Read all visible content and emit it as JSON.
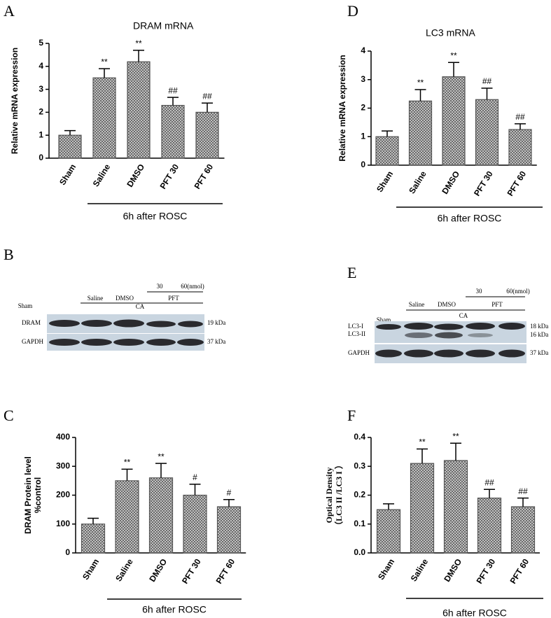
{
  "chart_data": [
    {
      "type": "bar",
      "panel_label": "A",
      "title": "DRAM mRNA",
      "ylabel": [
        "Relative mRNA expression"
      ],
      "color": "#555555",
      "categories": [
        "Sham",
        "Saline",
        "DMSO",
        "PFT 30",
        "PFT 60"
      ],
      "values": [
        1.0,
        3.5,
        4.2,
        2.3,
        2.0
      ],
      "errors": [
        0.2,
        0.4,
        0.5,
        0.35,
        0.4
      ],
      "annotations": [
        null,
        "**",
        "**",
        "##",
        "##"
      ],
      "ylim": [
        0,
        5
      ],
      "yticks": [
        0,
        1,
        2,
        3,
        4,
        5
      ],
      "group_label": "6h after ROSC"
    },
    {
      "type": "bar",
      "panel_label": "D",
      "title": "LC3 mRNA",
      "ylabel": [
        "Relative mRNA expression"
      ],
      "color": "#555555",
      "categories": [
        "Sham",
        "Saline",
        "DMSO",
        "PFT 30",
        "PFT 60"
      ],
      "values": [
        1.0,
        2.25,
        3.1,
        2.3,
        1.25
      ],
      "errors": [
        0.2,
        0.4,
        0.5,
        0.4,
        0.2
      ],
      "annotations": [
        null,
        "**",
        "**",
        "##",
        "##"
      ],
      "ylim": [
        0,
        4
      ],
      "yticks": [
        0,
        1,
        2,
        3,
        4
      ],
      "group_label": "6h after ROSC"
    },
    {
      "type": "bar",
      "panel_label": "C",
      "ylabel": [
        "DRAM Protein level",
        "%control"
      ],
      "color": "#555555",
      "categories": [
        "Sham",
        "Saline",
        "DMSO",
        "PFT 30",
        "PFT 60"
      ],
      "values": [
        100,
        250,
        260,
        200,
        160
      ],
      "errors": [
        20,
        40,
        50,
        38,
        25
      ],
      "annotations": [
        null,
        "**",
        "**",
        "#",
        "#"
      ],
      "ylim": [
        0,
        400
      ],
      "yticks": [
        0,
        100,
        200,
        300,
        400
      ],
      "group_label": "6h after ROSC"
    },
    {
      "type": "bar",
      "panel_label": "F",
      "ylabel": [
        "Optical Density",
        "（LC3 II /LC3 I ）"
      ],
      "color": "#555555",
      "categories": [
        "Sham",
        "Saline",
        "DMSO",
        "PFT 30",
        "PFT 60"
      ],
      "values": [
        0.15,
        0.31,
        0.32,
        0.19,
        0.16
      ],
      "errors": [
        0.02,
        0.05,
        0.06,
        0.03,
        0.03
      ],
      "annotations": [
        null,
        "**",
        "**",
        "##",
        "##"
      ],
      "ylim": [
        0,
        0.4
      ],
      "yticks": [
        {
          "value": 0,
          "label": "0.0"
        },
        0.1,
        0.2,
        0.3,
        0.4
      ],
      "group_label": "6h after ROSC"
    }
  ],
  "blots": [
    {
      "panel_label": "B",
      "doses": [
        "30",
        "60(nmol)"
      ],
      "groups": [
        "Saline",
        "DMSO",
        "PFT"
      ],
      "sham": "Sham",
      "ca": "CA",
      "rows": [
        {
          "label": "DRAM",
          "kda": "19 kDa"
        },
        {
          "label": "GAPDH",
          "kda": "37 kDa"
        }
      ]
    },
    {
      "panel_label": "E",
      "doses": [
        "30",
        "60(nmol)"
      ],
      "groups": [
        "Saline",
        "DMSO",
        "PFT"
      ],
      "sham": "Sham",
      "ca": "CA",
      "rows": [
        {
          "label": "LC3-I",
          "kda": "18 kDa"
        },
        {
          "label": "LC3-II",
          "kda": "16 kDa"
        },
        {
          "label": "GAPDH",
          "kda": "37 kDa"
        }
      ]
    }
  ]
}
